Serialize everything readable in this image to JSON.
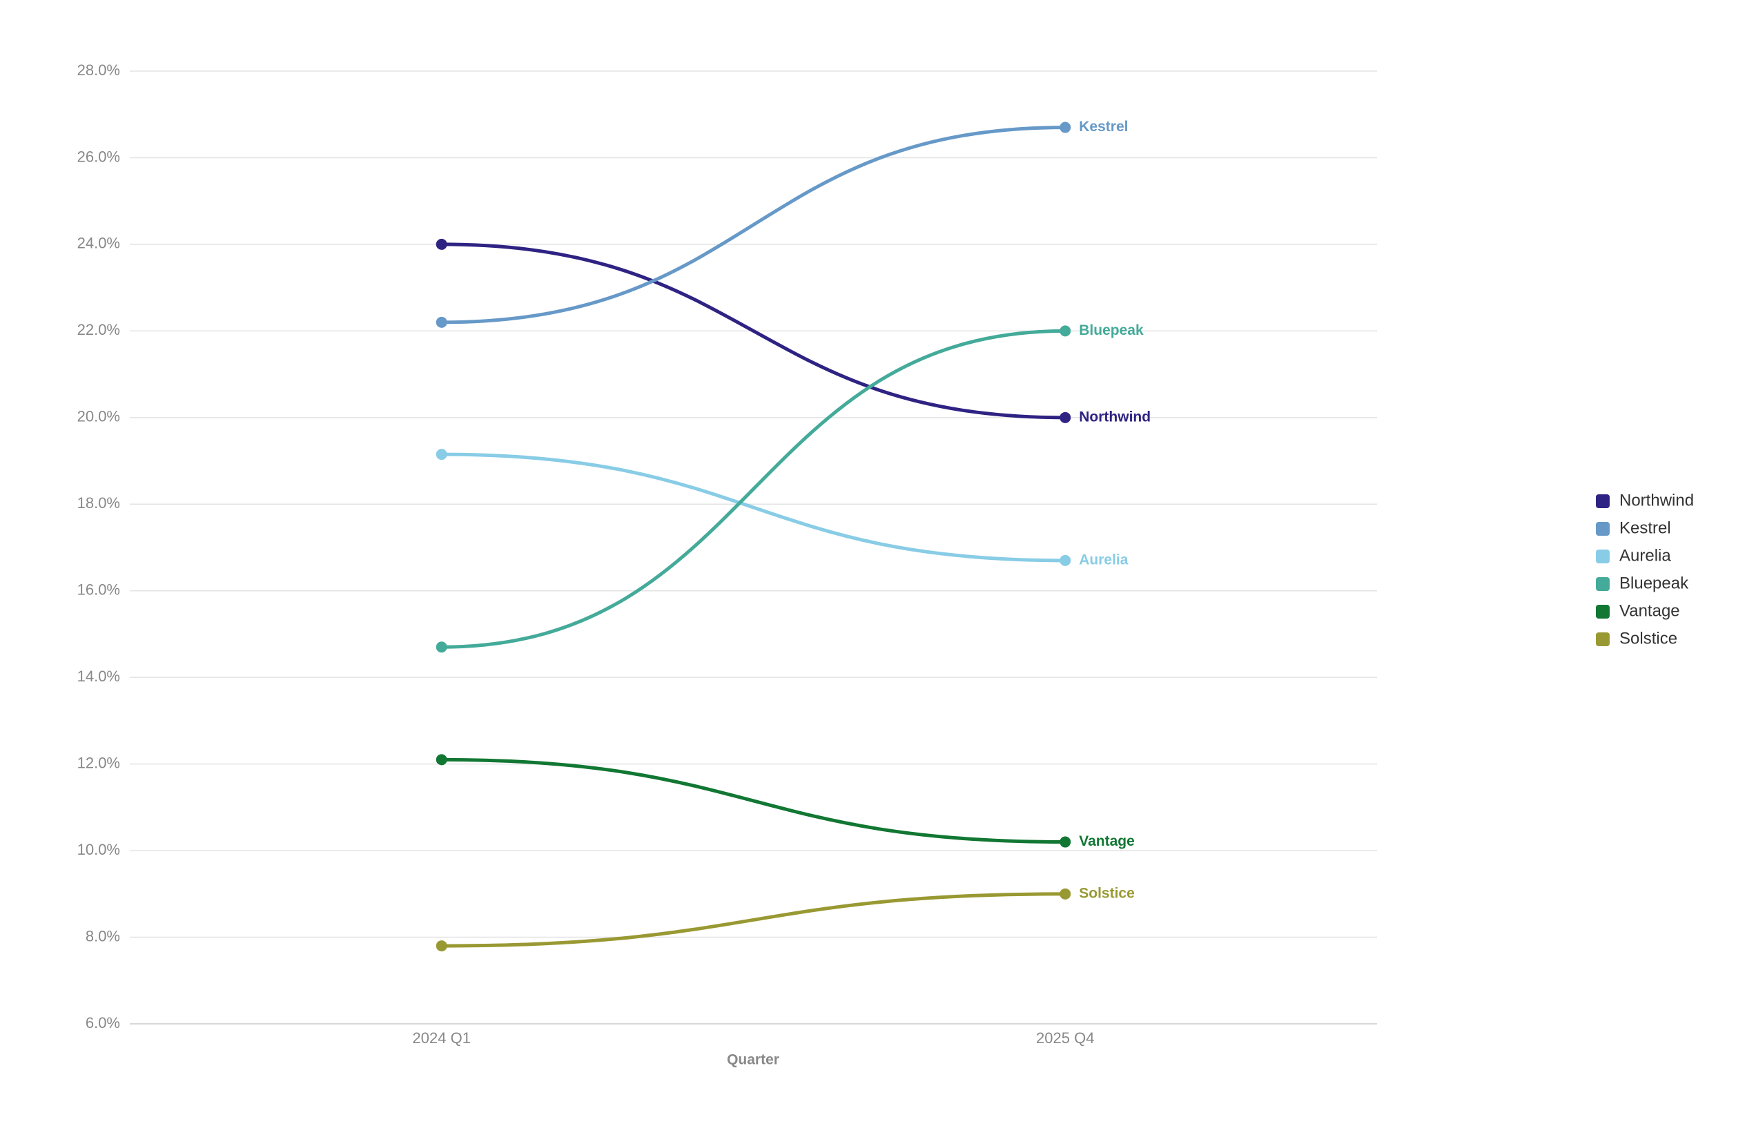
{
  "chart_data": {
    "type": "line",
    "x_label": "Quarter",
    "categories": [
      "2024 Q1",
      "2025 Q4"
    ],
    "series": [
      {
        "name": "Northwind",
        "color": "#2e2383",
        "values": [
          24.0,
          20.0
        ]
      },
      {
        "name": "Kestrel",
        "color": "#6699c8",
        "values": [
          22.2,
          26.7
        ]
      },
      {
        "name": "Aurelia",
        "color": "#88cce6",
        "values": [
          19.15,
          16.7
        ]
      },
      {
        "name": "Bluepeak",
        "color": "#44aa99",
        "values": [
          14.7,
          22.0
        ]
      },
      {
        "name": "Vantage",
        "color": "#117733",
        "values": [
          12.1,
          10.2
        ]
      },
      {
        "name": "Solstice",
        "color": "#999933",
        "values": [
          7.8,
          9.0
        ]
      }
    ],
    "ylim": [
      6,
      28
    ],
    "yticks": [
      {
        "value": 6,
        "label": "6.0%"
      },
      {
        "value": 8,
        "label": "8.0%"
      },
      {
        "value": 10,
        "label": "10.0%"
      },
      {
        "value": 12,
        "label": "12.0%"
      },
      {
        "value": 14,
        "label": "14.0%"
      },
      {
        "value": 16,
        "label": "16.0%"
      },
      {
        "value": 18,
        "label": "18.0%"
      },
      {
        "value": 20,
        "label": "20.0%"
      },
      {
        "value": 22,
        "label": "22.0%"
      },
      {
        "value": 24,
        "label": "24.0%"
      },
      {
        "value": 26,
        "label": "26.0%"
      },
      {
        "value": 28,
        "label": "28.0%"
      }
    ],
    "grid": true,
    "legend": "right"
  }
}
